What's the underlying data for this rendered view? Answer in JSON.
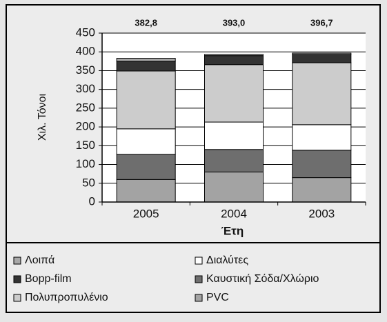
{
  "chart_data": {
    "type": "stacked_bar",
    "categories": [
      "2005",
      "2004",
      "2003"
    ],
    "xlabel": "Έτη",
    "ylabel": "Χιλ. Τόνοι",
    "ylim": [
      0,
      450
    ],
    "yticks": [
      0,
      50,
      100,
      150,
      200,
      250,
      300,
      350,
      400,
      450
    ],
    "grid": true,
    "totals": [
      382.8,
      393.0,
      396.7
    ],
    "totals_labels": [
      "382,8",
      "393,0",
      "396,7"
    ],
    "series": [
      {
        "name": "PVC",
        "color": "#a3a3a3",
        "values": [
          60,
          80,
          65
        ]
      },
      {
        "name": "Καυστική Σόδα/Χλώριο",
        "color": "#6e6e6e",
        "values": [
          67,
          60,
          73
        ]
      },
      {
        "name": "Διαλύτες",
        "color": "#ffffff",
        "values": [
          68,
          73,
          68
        ]
      },
      {
        "name": "Πολυπροπυλένιο",
        "color": "#cccccc",
        "values": [
          154,
          153,
          165
        ]
      },
      {
        "name": "Bopp-film",
        "color": "#333333",
        "values": [
          26,
          24,
          22
        ]
      },
      {
        "name": "Λοιπά",
        "color": "#a8a8a8",
        "values": [
          7.8,
          3,
          3.7
        ]
      }
    ]
  }
}
